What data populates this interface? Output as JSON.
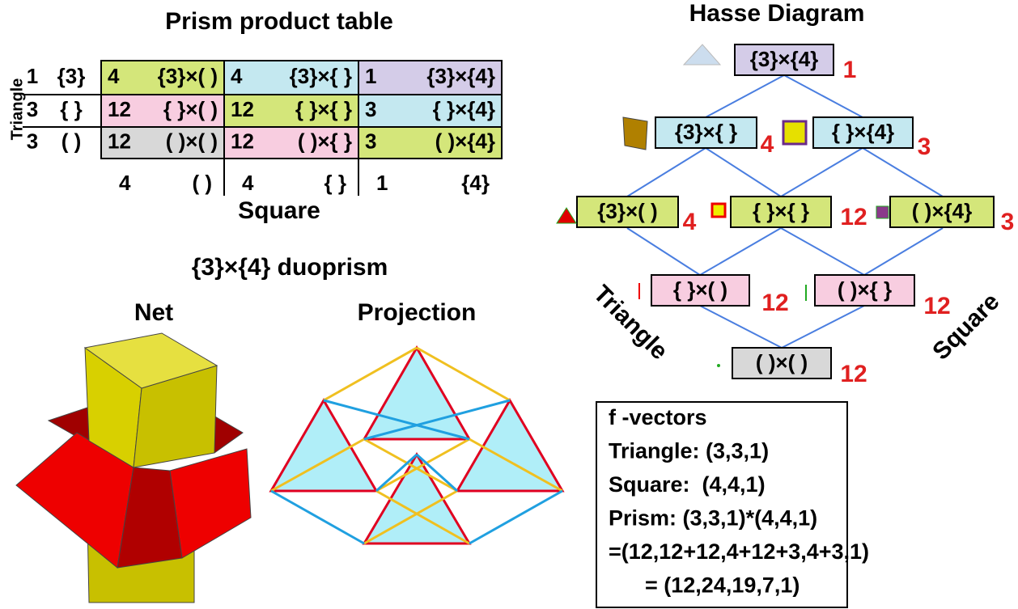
{
  "product_table": {
    "title": "Prism product table",
    "row_axis": "Triangle",
    "column_axis": "Square",
    "rows": [
      {
        "count": "1",
        "symbol": "{3}"
      },
      {
        "count": "3",
        "symbol": "{ }"
      },
      {
        "count": "3",
        "symbol": "( )"
      }
    ],
    "columns": [
      {
        "count": "4",
        "symbol": "( )"
      },
      {
        "count": "4",
        "symbol": "{ }"
      },
      {
        "count": "1",
        "symbol": "{4}"
      }
    ],
    "cells": [
      [
        {
          "count": "4",
          "label": "{3}×( )"
        },
        {
          "count": "4",
          "label": "{3}×{ }"
        },
        {
          "count": "1",
          "label": "{3}×{4}"
        }
      ],
      [
        {
          "count": "12",
          "label": "{ }×( )"
        },
        {
          "count": "12",
          "label": "{ }×{ }"
        },
        {
          "count": "3",
          "label": "{ }×{4}"
        }
      ],
      [
        {
          "count": "12",
          "label": "( )×( )"
        },
        {
          "count": "12",
          "label": "( )×{ }"
        },
        {
          "count": "3",
          "label": "( )×{4}"
        }
      ]
    ]
  },
  "duoprism": {
    "title": "{3}×{4} duoprism",
    "net_label": "Net",
    "projection_label": "Projection"
  },
  "hasse": {
    "title": "Hasse Diagram",
    "left_label": "Triangle",
    "right_label": "Square",
    "nodes": [
      {
        "label": "{3}×{4}",
        "count": "1"
      },
      {
        "label": "{3}×{ }",
        "count": "4"
      },
      {
        "label": "{ }×{4}",
        "count": "3"
      },
      {
        "label": "{3}×( )",
        "count": "4"
      },
      {
        "label": "{ }×{ }",
        "count": "12"
      },
      {
        "label": "( )×{4}",
        "count": "3"
      },
      {
        "label": "{ }×( )",
        "count": "12"
      },
      {
        "label": "( )×{ }",
        "count": "12"
      },
      {
        "label": "( )×( )",
        "count": "12"
      }
    ]
  },
  "f_vectors": {
    "lines": [
      "f -vectors",
      "Triangle: (3,3,1)",
      "Square:  (4,4,1)",
      "Prism: (3,3,1)*(4,4,1)",
      "=(12,12+12,4+12+3,4+3,1)",
      "      = (12,24,19,7,1)"
    ]
  }
}
